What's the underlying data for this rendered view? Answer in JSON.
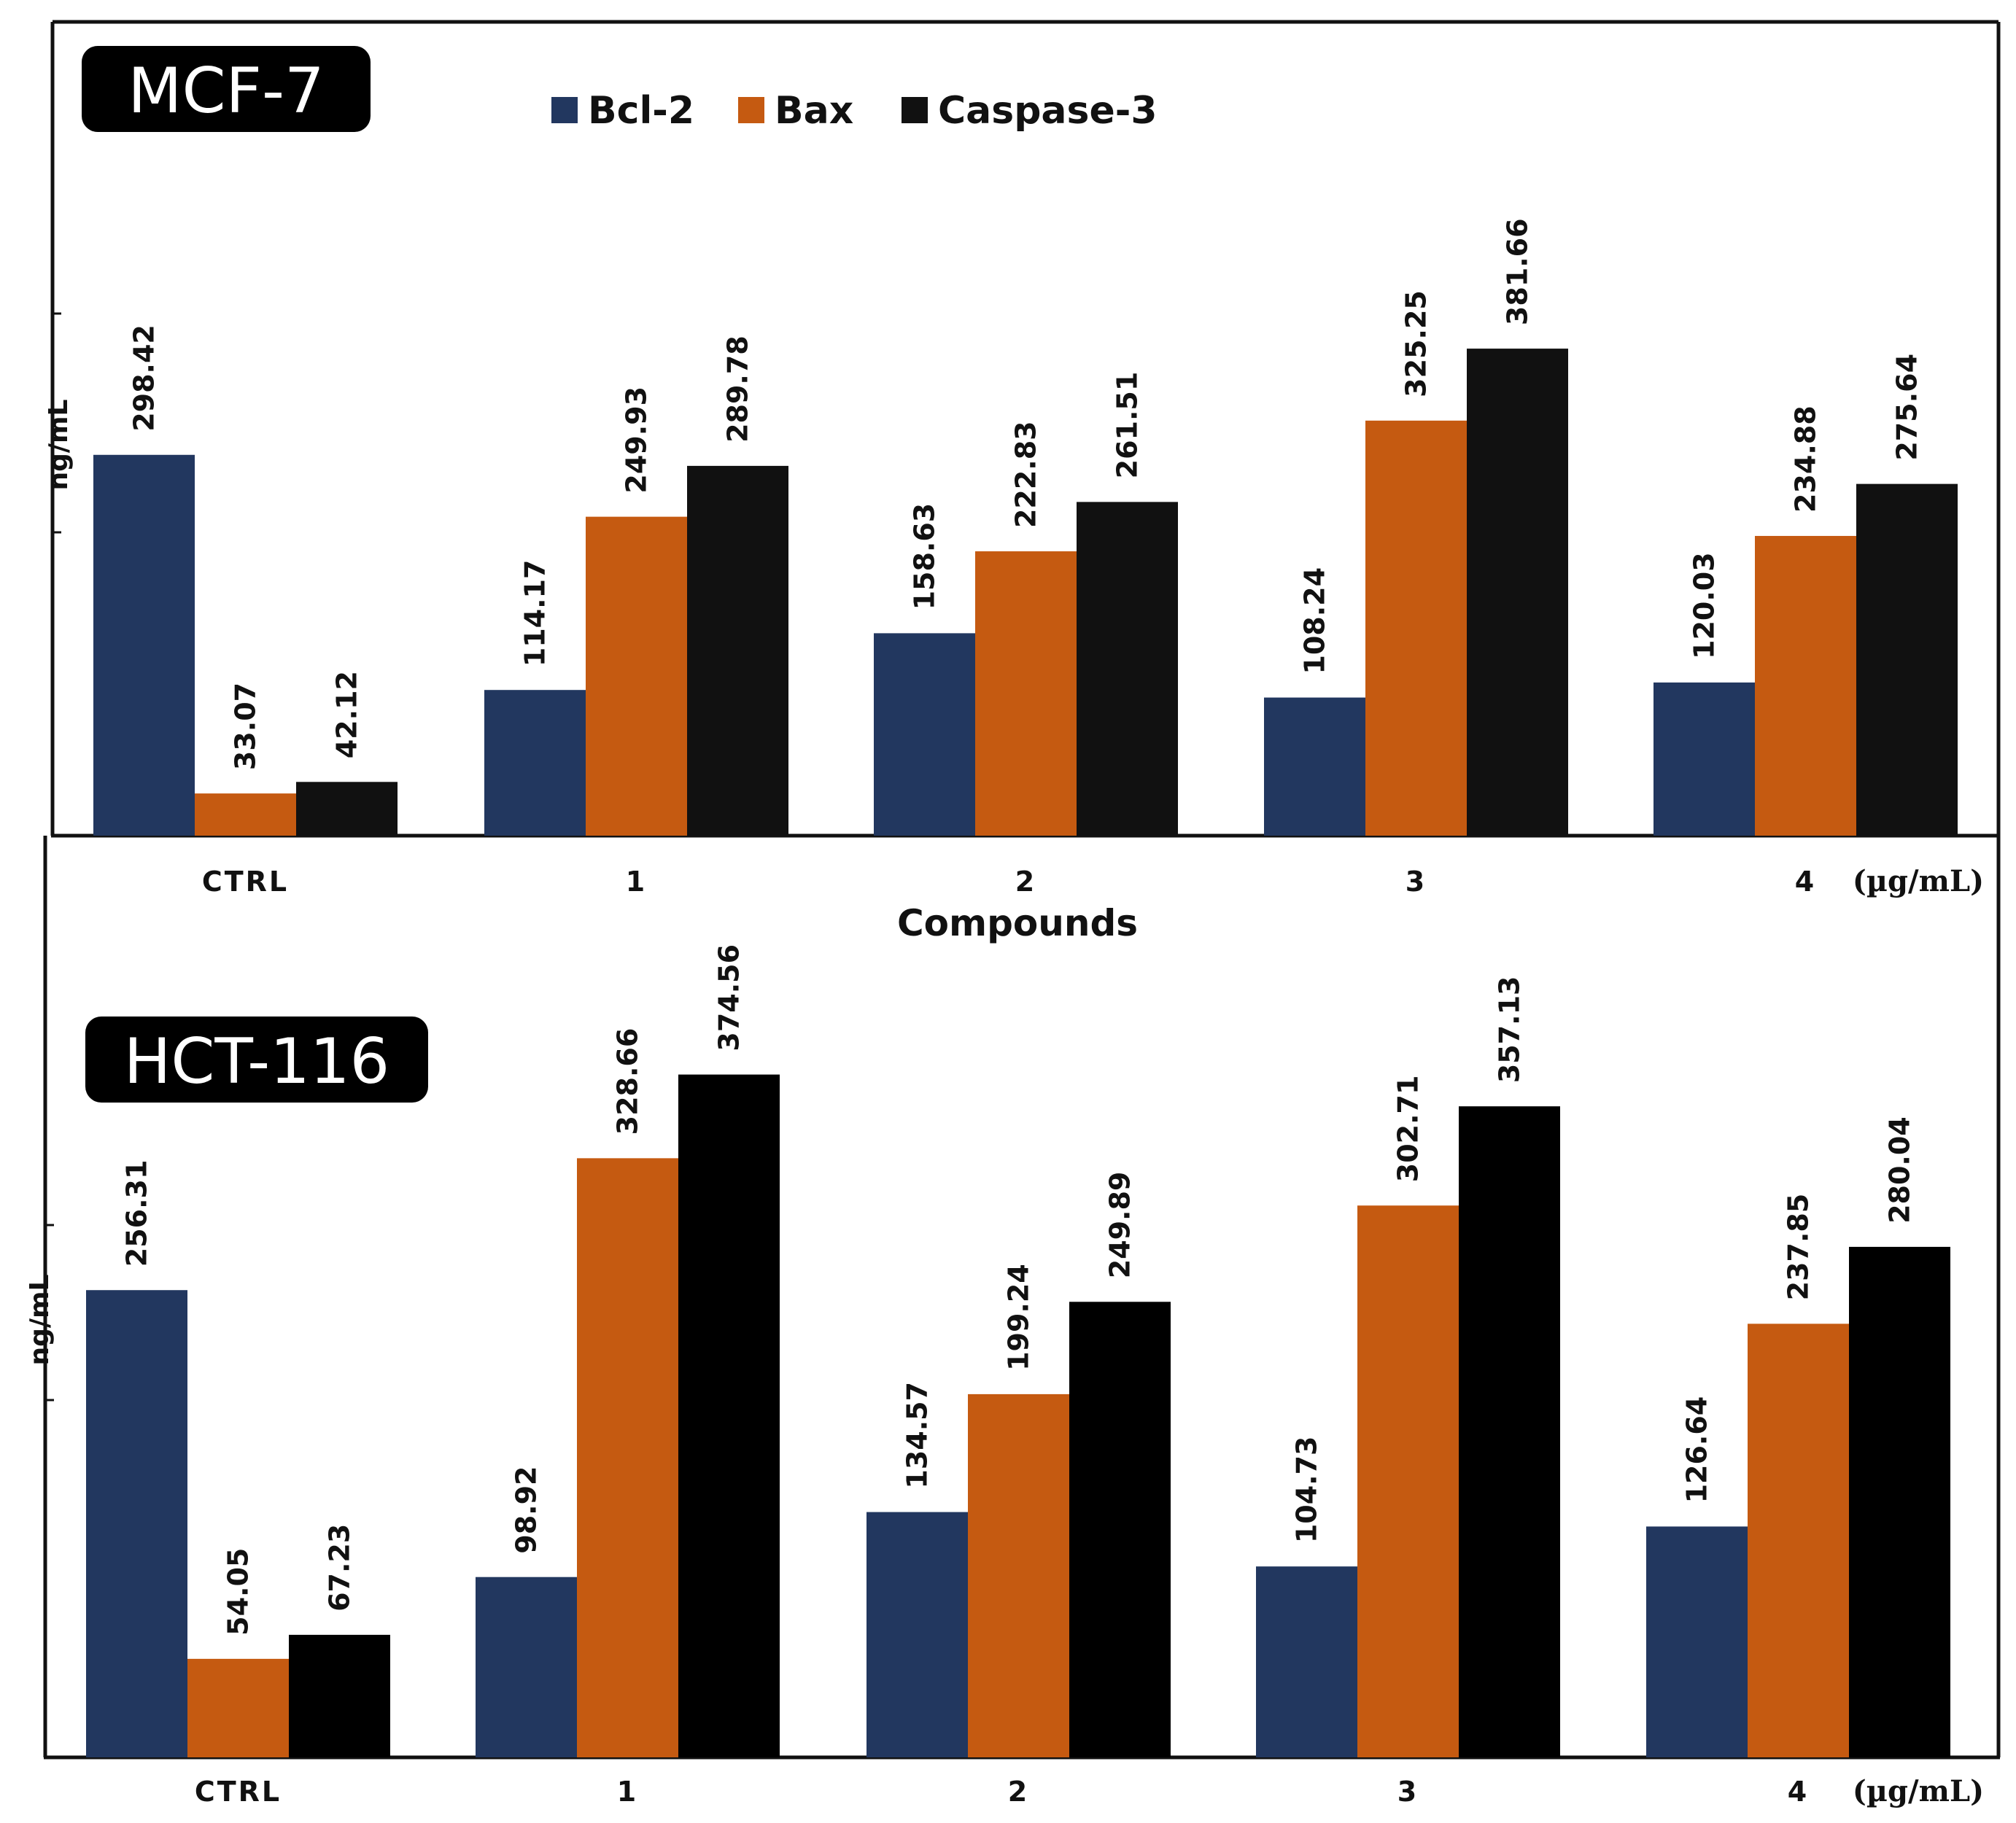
{
  "chart_data": [
    {
      "type": "bar",
      "title": "MCF-7",
      "categories": [
        "CTRL",
        "1",
        "2",
        "3",
        "4"
      ],
      "unit_label": "(µg/mL)",
      "xlabel": "Compounds",
      "ylabel": "ng/mL",
      "ylim": [
        0,
        400
      ],
      "series": [
        {
          "name": "Bcl-2",
          "color": "#22375F",
          "values": [
            298.42,
            114.17,
            158.63,
            108.24,
            120.03
          ]
        },
        {
          "name": "Bax",
          "color": "#C55A11",
          "values": [
            33.07,
            249.93,
            222.83,
            325.25,
            234.88
          ]
        },
        {
          "name": "Caspase-3",
          "color": "#111111",
          "values": [
            42.12,
            289.78,
            261.51,
            381.66,
            275.64
          ]
        }
      ],
      "labels": [
        [
          "298.42",
          "114.17",
          "158.63",
          "108.24",
          "120.03"
        ],
        [
          "33.07",
          "249.93",
          "222.83",
          "325.25",
          "234.88"
        ],
        [
          "42.12",
          "289.78",
          "261.51",
          "381.66",
          "275.64"
        ]
      ],
      "legend": "top"
    },
    {
      "type": "bar",
      "title": "HCT-116",
      "categories": [
        "CTRL",
        "1",
        "2",
        "3",
        "4"
      ],
      "unit_label": "(µg/mL)",
      "xlabel": "",
      "ylabel": "ng/mL",
      "ylim": [
        0,
        400
      ],
      "series": [
        {
          "name": "Bcl-2",
          "color": "#22375F",
          "values": [
            256.31,
            98.92,
            134.57,
            104.73,
            126.64
          ]
        },
        {
          "name": "Bax",
          "color": "#C55A11",
          "values": [
            54.05,
            328.66,
            199.24,
            302.71,
            237.85
          ]
        },
        {
          "name": "Caspase-3",
          "color": "#000000",
          "values": [
            67.23,
            374.56,
            249.89,
            357.13,
            280.04
          ]
        }
      ],
      "labels": [
        [
          "256.31",
          "98.92",
          "134.57",
          "104.73",
          "126.64"
        ],
        [
          "54.05",
          "328.66",
          "199.24",
          "302.71",
          "237.85"
        ],
        [
          "67.23",
          "374.56",
          "249.89",
          "357.13",
          "280.04"
        ]
      ],
      "legend": "none"
    }
  ]
}
